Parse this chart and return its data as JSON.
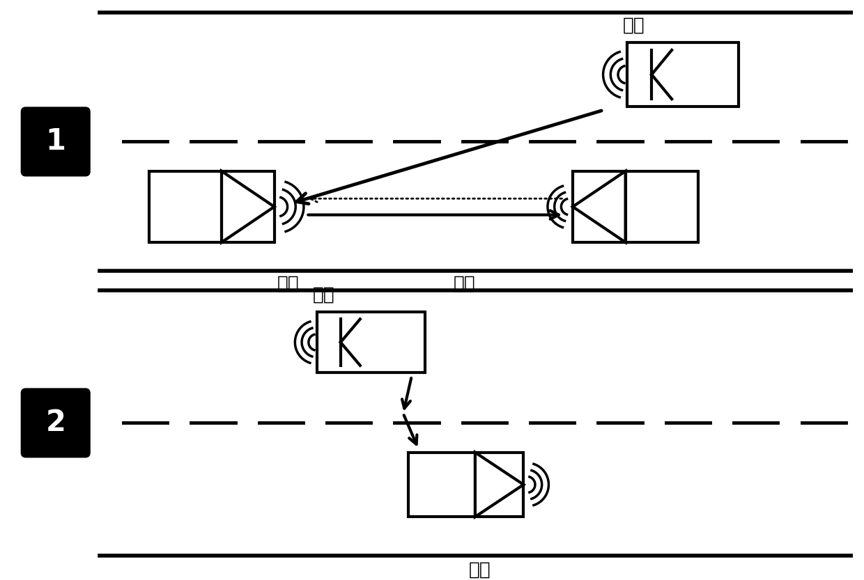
{
  "bg_color": "#ffffff",
  "line_color": "#000000",
  "label1": "1",
  "label2": "2",
  "text_ganrao1": "干扰",
  "text_ganrao2": "干扰",
  "text_leida1": "雷达",
  "text_huibo": "回波",
  "text_leida2": "雷达",
  "lw_road": 4.0,
  "lw_thick": 3.0,
  "lw_wave": 2.5
}
